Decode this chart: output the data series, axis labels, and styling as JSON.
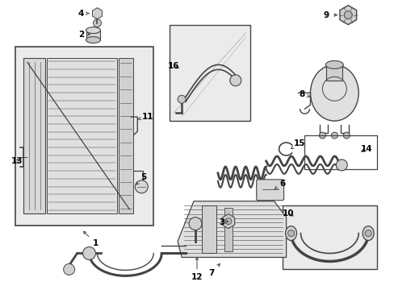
{
  "bg_color": "#ffffff",
  "line_color": "#444444",
  "label_color": "#000000",
  "fig_w": 4.89,
  "fig_h": 3.6,
  "dpi": 100
}
